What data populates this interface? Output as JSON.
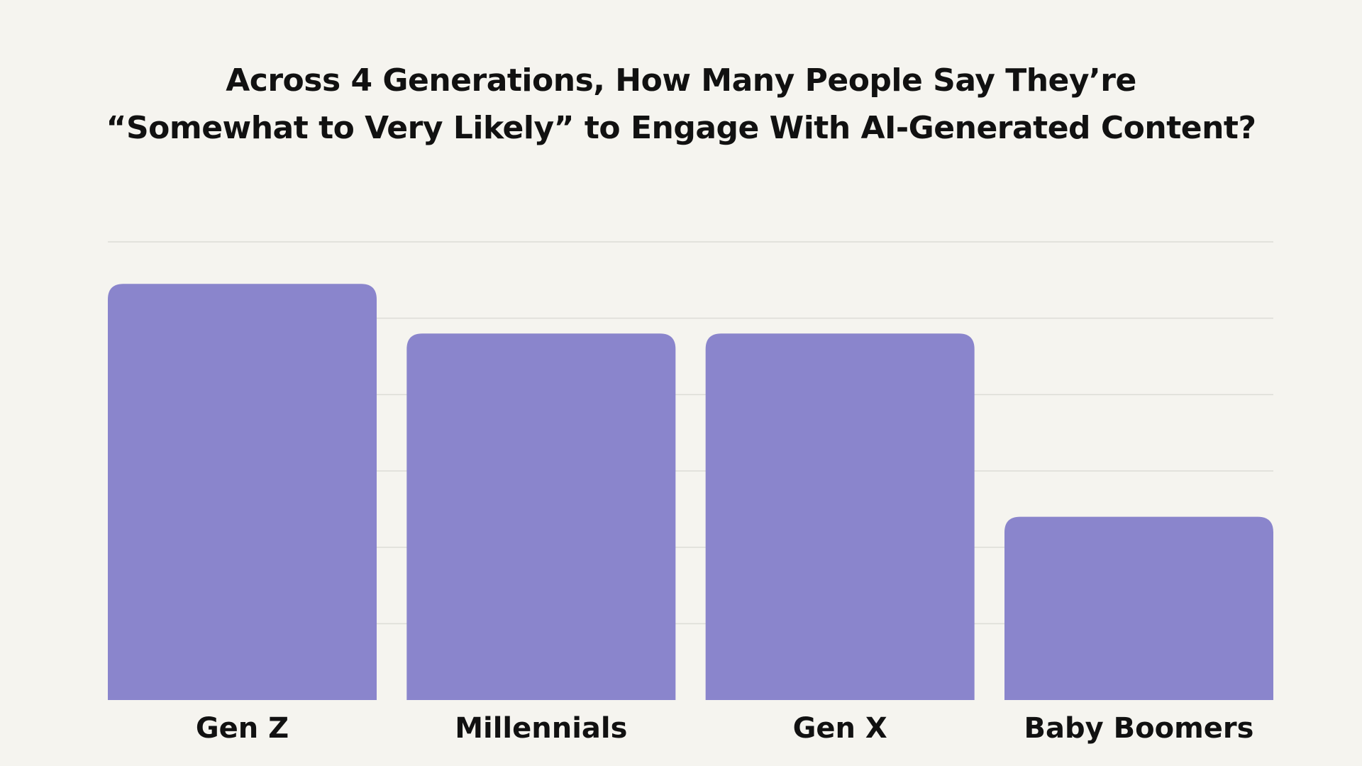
{
  "chart_data": {
    "type": "bar",
    "title_lines": [
      "Across 4 Generations, How Many People Say They’re",
      "“Somewhat to Very Likely” to Engage With AI-Generated Content?"
    ],
    "categories": [
      "Gen Z",
      "Millennials",
      "Gen X",
      "Baby Boomers"
    ],
    "values": [
      54.5,
      48,
      48,
      24
    ],
    "ylim": [
      0,
      60
    ],
    "grid": true,
    "bar_color": "#8a85cc",
    "grid_color": "#dcdcd6",
    "background_color": "#f5f4ef"
  }
}
